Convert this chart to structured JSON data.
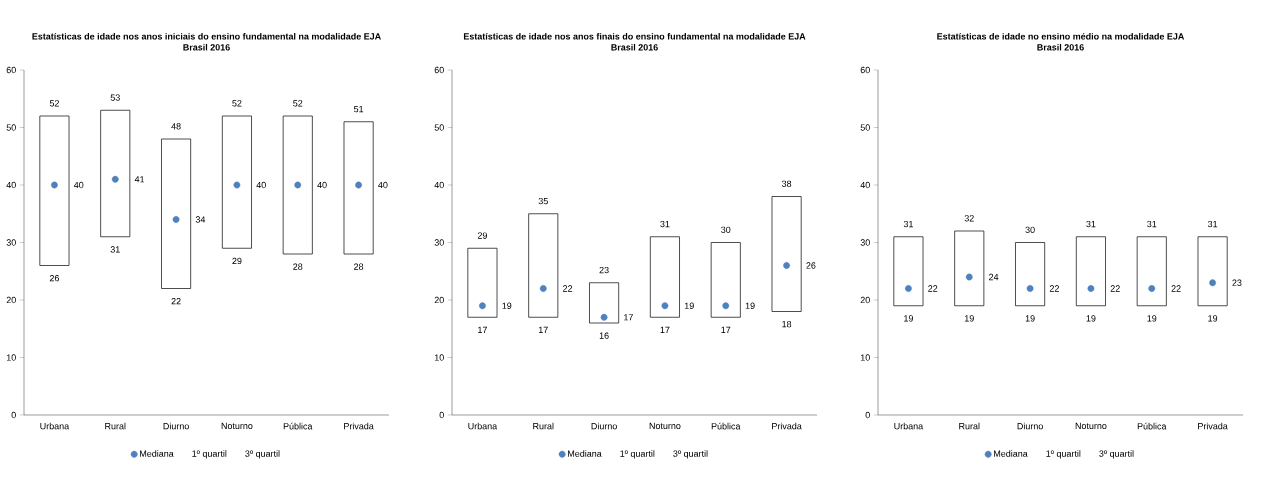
{
  "chart_data": [
    {
      "type": "box",
      "title": "Estatísticas de idade nos anos iniciais do ensino fundamental na modalidade EJA",
      "subtitle": "Brasil 2016",
      "categories": [
        "Urbana",
        "Rural",
        "Diurno",
        "Noturno",
        "Pública",
        "Privada"
      ],
      "boxes": [
        {
          "low": 26,
          "q1": 26,
          "q3": 52,
          "high": 52
        },
        {
          "low": 31,
          "q1": 31,
          "q3": 53,
          "high": 53
        },
        {
          "low": 22,
          "q1": 22,
          "q3": 48,
          "high": 48
        },
        {
          "low": 29,
          "q1": 29,
          "q3": 52,
          "high": 52
        },
        {
          "low": 28,
          "q1": 28,
          "q3": 52,
          "high": 52
        },
        {
          "low": 28,
          "q1": 28,
          "q3": 51,
          "high": 51
        }
      ],
      "series": [
        {
          "name": "Mediana",
          "type": "scatter",
          "color": "#4f81bd",
          "x": [
            "Urbana",
            "Rural",
            "Diurno",
            "Noturno",
            "Pública",
            "Privada"
          ],
          "values": [
            40,
            41,
            34,
            40,
            40,
            40
          ]
        }
      ],
      "annotations": [
        "1º quartil",
        "3º quartil",
        {
          "text": "52",
          "x": "Urbana",
          "y": 52
        },
        {
          "text": "40",
          "x": "Urbana",
          "y": 40
        },
        {
          "text": "26",
          "x": "Urbana",
          "y": 26
        },
        {
          "text": "53",
          "x": "Rural",
          "y": 53
        },
        {
          "text": "41",
          "x": "Rural",
          "y": 41
        },
        {
          "text": "31",
          "x": "Rural",
          "y": 31
        },
        {
          "text": "48",
          "x": "Diurno",
          "y": 48
        },
        {
          "text": "34",
          "x": "Diurno",
          "y": 34
        },
        {
          "text": "22",
          "x": "Diurno",
          "y": 22
        },
        {
          "text": "52",
          "x": "Noturno",
          "y": 52
        },
        {
          "text": "40",
          "x": "Noturno",
          "y": 40
        },
        {
          "text": "29",
          "x": "Noturno",
          "y": 29
        },
        {
          "text": "52",
          "x": "Pública",
          "y": 52
        },
        {
          "text": "40",
          "x": "Pública",
          "y": 40
        },
        {
          "text": "28",
          "x": "Pública",
          "y": 28
        },
        {
          "text": "51",
          "x": "Privada",
          "y": 51
        },
        {
          "text": "40",
          "x": "Privada",
          "y": 40
        },
        {
          "text": "28",
          "x": "Privada",
          "y": 28
        }
      ],
      "marker": "circle",
      "ylim": [
        0,
        60
      ],
      "yticks": [
        0,
        10,
        20,
        30,
        40,
        50,
        60
      ],
      "legend": "bottom"
    },
    {
      "type": "box",
      "title": "Estatísticas de idade nos anos finais do ensino fundamental na modalidade EJA",
      "subtitle": "Brasil 2016",
      "categories": [
        "Urbana",
        "Rural",
        "Diurno",
        "Noturno",
        "Pública",
        "Privada"
      ],
      "boxes": [
        {
          "low": 17,
          "q1": 17,
          "q3": 29,
          "high": 29
        },
        {
          "low": 17,
          "q1": 17,
          "q3": 35,
          "high": 35
        },
        {
          "low": 16,
          "q1": 16,
          "q3": 23,
          "high": 23
        },
        {
          "low": 17,
          "q1": 17,
          "q3": 31,
          "high": 31
        },
        {
          "low": 17,
          "q1": 17,
          "q3": 30,
          "high": 30
        },
        {
          "low": 18,
          "q1": 18,
          "q3": 38,
          "high": 38
        }
      ],
      "series": [
        {
          "name": "Mediana",
          "type": "scatter",
          "color": "#4f81bd",
          "x": [
            "Urbana",
            "Rural",
            "Diurno",
            "Noturno",
            "Pública",
            "Privada"
          ],
          "values": [
            19,
            22,
            17,
            19,
            19,
            26
          ]
        }
      ],
      "annotations": [
        "1º quartil",
        "3º quartil",
        {
          "text": "29",
          "x": "Urbana",
          "y": 29
        },
        {
          "text": "19",
          "x": "Urbana",
          "y": 19
        },
        {
          "text": "17",
          "x": "Urbana",
          "y": 17
        },
        {
          "text": "35",
          "x": "Rural",
          "y": 35
        },
        {
          "text": "22",
          "x": "Rural",
          "y": 22
        },
        {
          "text": "17",
          "x": "Rural",
          "y": 17
        },
        {
          "text": "23",
          "x": "Diurno",
          "y": 23
        },
        {
          "text": "17",
          "x": "Diurno",
          "y": 17
        },
        {
          "text": "16",
          "x": "Diurno",
          "y": 16
        },
        {
          "text": "31",
          "x": "Noturno",
          "y": 31
        },
        {
          "text": "19",
          "x": "Noturno",
          "y": 19
        },
        {
          "text": "17",
          "x": "Noturno",
          "y": 17
        },
        {
          "text": "30",
          "x": "Pública",
          "y": 30
        },
        {
          "text": "19",
          "x": "Pública",
          "y": 19
        },
        {
          "text": "17",
          "x": "Pública",
          "y": 17
        },
        {
          "text": "38",
          "x": "Privada",
          "y": 38
        },
        {
          "text": "26",
          "x": "Privada",
          "y": 26
        },
        {
          "text": "18",
          "x": "Privada",
          "y": 18
        }
      ],
      "marker": "circle",
      "ylim": [
        0,
        60
      ],
      "yticks": [
        0,
        10,
        20,
        30,
        40,
        50,
        60
      ],
      "legend": "bottom"
    },
    {
      "type": "box",
      "title": "Estatísticas de idade no ensino médio na modalidade EJA",
      "subtitle": "Brasil 2016",
      "categories": [
        "Urbana",
        "Rural",
        "Diurno",
        "Noturno",
        "Pública",
        "Privada"
      ],
      "boxes": [
        {
          "low": 19,
          "q1": 19,
          "q3": 31,
          "high": 31
        },
        {
          "low": 19,
          "q1": 19,
          "q3": 32,
          "high": 32
        },
        {
          "low": 19,
          "q1": 19,
          "q3": 30,
          "high": 30
        },
        {
          "low": 19,
          "q1": 19,
          "q3": 31,
          "high": 31
        },
        {
          "low": 19,
          "q1": 19,
          "q3": 31,
          "high": 31
        },
        {
          "low": 19,
          "q1": 19,
          "q3": 31,
          "high": 31
        }
      ],
      "series": [
        {
          "name": "Mediana",
          "type": "scatter",
          "color": "#4f81bd",
          "x": [
            "Urbana",
            "Rural",
            "Diurno",
            "Noturno",
            "Pública",
            "Privada"
          ],
          "values": [
            22,
            24,
            22,
            22,
            22,
            23
          ]
        }
      ],
      "annotations": [
        "1º quartil",
        "3º quartil",
        {
          "text": "31",
          "x": "Urbana",
          "y": 31
        },
        {
          "text": "22",
          "x": "Urbana",
          "y": 22
        },
        {
          "text": "19",
          "x": "Urbana",
          "y": 19
        },
        {
          "text": "32",
          "x": "Rural",
          "y": 32
        },
        {
          "text": "24",
          "x": "Rural",
          "y": 24
        },
        {
          "text": "19",
          "x": "Rural",
          "y": 19
        },
        {
          "text": "30",
          "x": "Diurno",
          "y": 30
        },
        {
          "text": "22",
          "x": "Diurno",
          "y": 22
        },
        {
          "text": "19",
          "x": "Diurno",
          "y": 19
        },
        {
          "text": "31",
          "x": "Noturno",
          "y": 31
        },
        {
          "text": "22",
          "x": "Noturno",
          "y": 22
        },
        {
          "text": "19",
          "x": "Noturno",
          "y": 19
        },
        {
          "text": "31",
          "x": "Pública",
          "y": 31
        },
        {
          "text": "22",
          "x": "Pública",
          "y": 22
        },
        {
          "text": "19",
          "x": "Pública",
          "y": 19
        },
        {
          "text": "31",
          "x": "Privada",
          "y": 31
        },
        {
          "text": "23",
          "x": "Privada",
          "y": 23
        },
        {
          "text": "19",
          "x": "Privada",
          "y": 19
        }
      ],
      "marker": "circle",
      "ylim": [
        0,
        60
      ],
      "yticks": [
        0,
        10,
        20,
        30,
        40,
        50,
        60
      ],
      "legend": "bottom"
    }
  ]
}
